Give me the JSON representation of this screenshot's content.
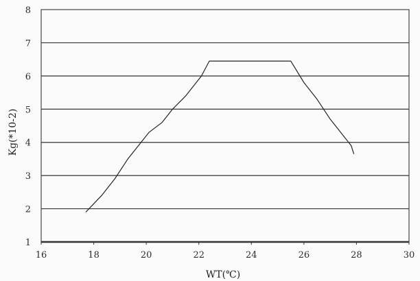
{
  "chart_data": {
    "type": "line",
    "title": "",
    "xlabel": "WT(℃)",
    "ylabel": "Kg(*10-2)",
    "xlim": [
      16,
      30
    ],
    "ylim": [
      1,
      8
    ],
    "x_ticks": [
      16,
      18,
      20,
      22,
      24,
      26,
      28,
      30
    ],
    "y_ticks": [
      1,
      2,
      3,
      4,
      5,
      6,
      7,
      8
    ],
    "grid": "horizontal",
    "legend": "none",
    "series": [
      {
        "x": [
          17.7,
          18.3,
          18.8,
          19.3,
          19.8,
          20.1,
          20.6,
          21.0,
          21.5,
          21.9,
          22.1,
          22.4,
          23.0,
          24.0,
          25.0,
          25.5,
          26.0,
          26.5,
          27.0,
          27.5,
          27.8,
          27.9
        ],
        "y": [
          1.9,
          2.4,
          2.9,
          3.5,
          4.0,
          4.3,
          4.6,
          5.0,
          5.4,
          5.8,
          6.0,
          6.45,
          6.45,
          6.45,
          6.45,
          6.45,
          5.8,
          5.3,
          4.7,
          4.2,
          3.9,
          3.65
        ]
      }
    ]
  }
}
